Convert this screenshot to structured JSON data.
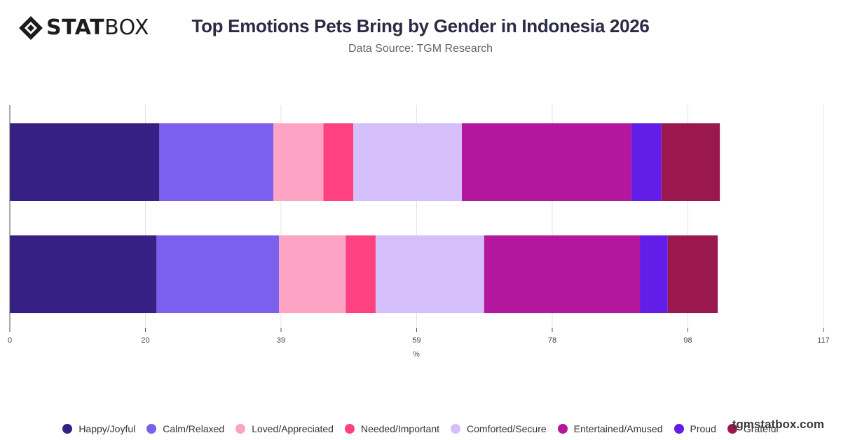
{
  "logo": {
    "text_bold": "STAT",
    "text_regular": "BOX"
  },
  "watermark": "tgmstatbox.com",
  "chart_data": {
    "type": "bar",
    "orientation": "horizontal",
    "stacked": true,
    "title": "Top Emotions Pets Bring by Gender in Indonesia 2026",
    "subtitle": "Data Source: TGM Research",
    "xlabel": "%",
    "ylabel": "",
    "xlim": [
      0,
      117
    ],
    "x_ticks": [
      "0",
      "20",
      "39",
      "59",
      "78",
      "98",
      "117"
    ],
    "grid": true,
    "legend_position": "bottom",
    "categories": [
      "",
      ""
    ],
    "series": [
      {
        "name": "Happy/Joyful",
        "color": "#372083",
        "values": [
          21.5,
          21.1
        ]
      },
      {
        "name": "Calm/Relaxed",
        "color": "#7b5fed",
        "values": [
          16.4,
          17.6
        ]
      },
      {
        "name": "Loved/Appreciated",
        "color": "#fda4c4",
        "values": [
          7.2,
          9.6
        ]
      },
      {
        "name": "Needed/Important",
        "color": "#ff4081",
        "values": [
          4.3,
          4.3
        ]
      },
      {
        "name": "Comforted/Secure",
        "color": "#d5bffa",
        "values": [
          15.6,
          15.6
        ]
      },
      {
        "name": "Entertained/Amused",
        "color": "#b3179d",
        "values": [
          24.4,
          22.4
        ]
      },
      {
        "name": "Proud",
        "color": "#621ee8",
        "values": [
          4.3,
          4.0
        ]
      },
      {
        "name": "Grateful",
        "color": "#9b184f",
        "values": [
          8.4,
          7.2
        ]
      }
    ]
  }
}
